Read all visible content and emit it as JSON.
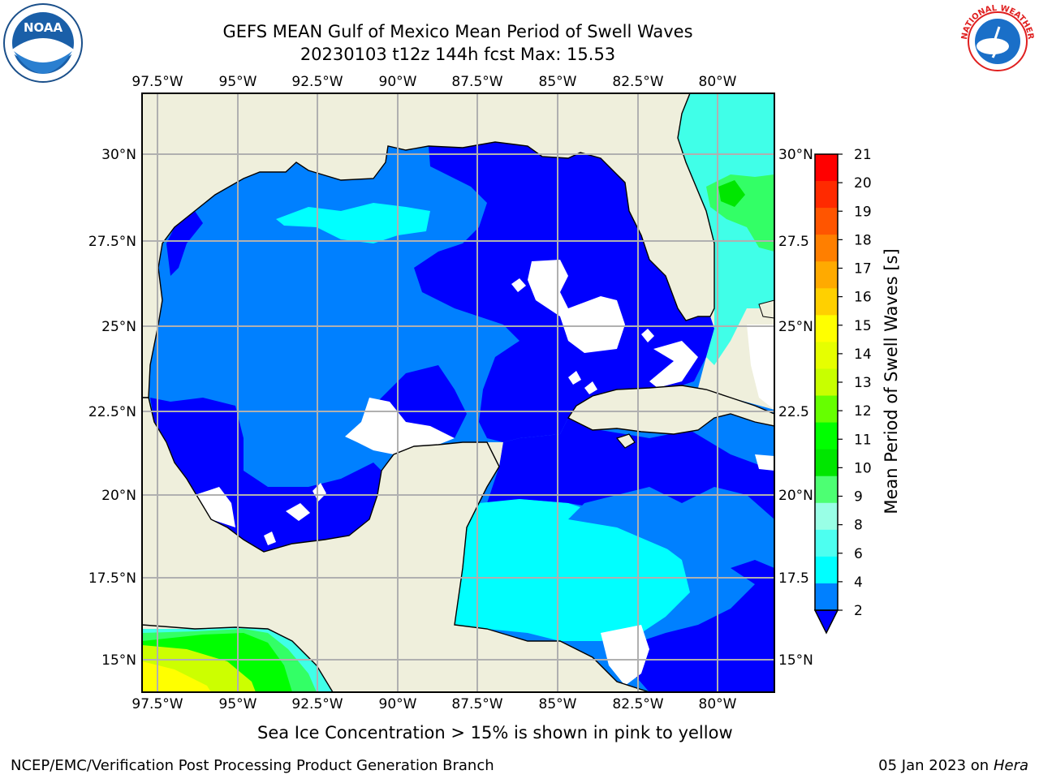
{
  "title_line1": "GEFS MEAN Gulf of Mexico Mean Period of Swell Waves",
  "title_line2": "20230103 t12z 144h fcst   Max: 15.53",
  "footnote": "Sea Ice Concentration > 15% is shown in pink to yellow",
  "credit": "NCEP/EMC/Verification Post Processing Product Generation Branch",
  "date_text": "05 Jan 2023 on ",
  "machine": "Hera",
  "map": {
    "lon_ticks": [
      "97.5°W",
      "95°W",
      "92.5°W",
      "90°W",
      "87.5°W",
      "85°W",
      "82.5°W",
      "80°W"
    ],
    "lat_ticks_left": [
      "30°N",
      "27.5°N",
      "25°N",
      "22.5°N",
      "20°N",
      "17.5°N",
      "15°N"
    ],
    "lat_ticks_right": [
      "30°N",
      "27.5",
      "25°N",
      "22.5",
      "20°N",
      "17.5",
      "15°N"
    ]
  },
  "colorbar": {
    "label": "Mean Period of Swell Waves [s]",
    "ticks": [
      "21",
      "20",
      "19",
      "18",
      "17",
      "16",
      "15",
      "14",
      "13",
      "12",
      "11",
      "10",
      "9",
      "8",
      "6",
      "4",
      "2"
    ],
    "colors": [
      "#ff0000",
      "#ff2a00",
      "#ff5500",
      "#ff7f00",
      "#ffaa00",
      "#ffd000",
      "#ffff00",
      "#e6ff00",
      "#c8ff00",
      "#66ff00",
      "#00ff00",
      "#00e600",
      "#4dff73",
      "#99ffe6",
      "#4dfff0",
      "#00ffff",
      "#0080ff"
    ],
    "extend_color": "#0000ff"
  },
  "colors": {
    "land": "#efefdc",
    "ocean_deep": "#0000ff",
    "ocean_mid": "#0080ff",
    "ocean_cyan": "#00ffff",
    "ocean_light": "#80fff0",
    "ocean_green": "#33ff66",
    "grid": "#b0b0b0"
  },
  "logos": {
    "noaa_text": "NOAA",
    "nws_text": "NATIONAL WEATHER SERVICE"
  }
}
